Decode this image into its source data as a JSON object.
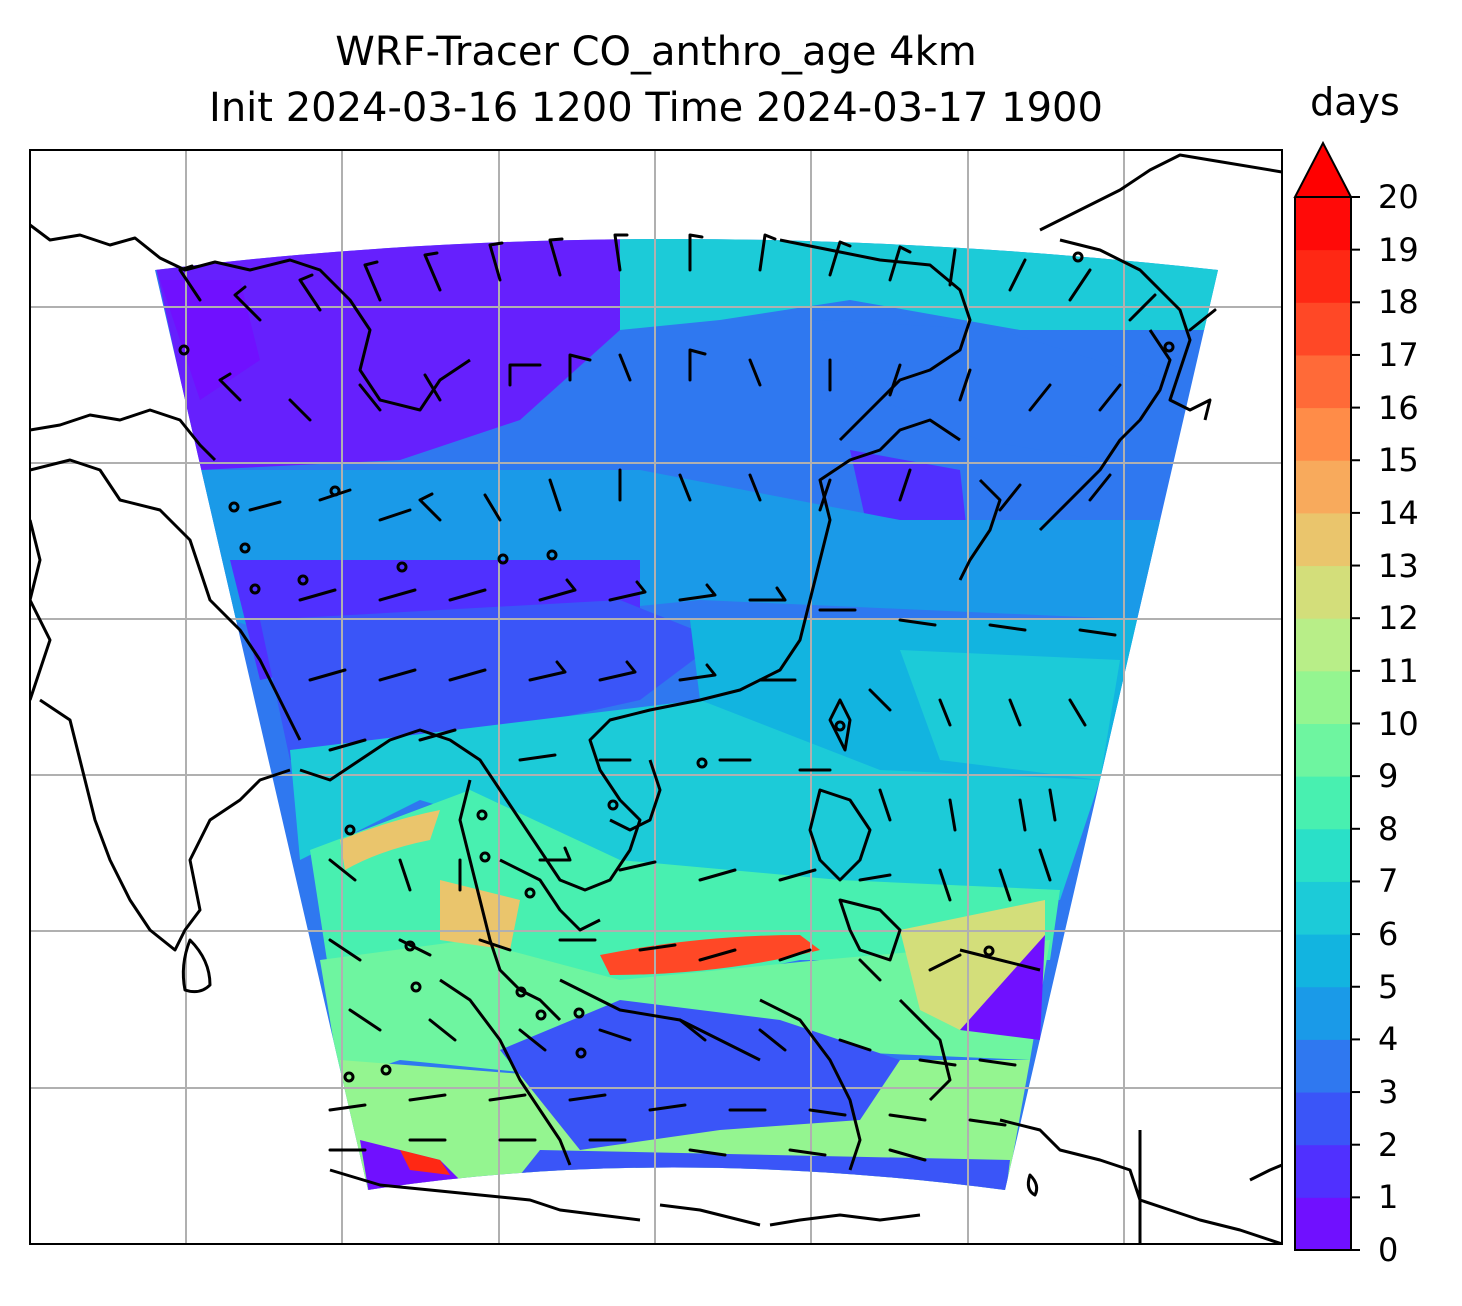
{
  "title": {
    "line1": "WRF-Tracer CO_anthro_age 4km",
    "line2": "Init 2024-03-16 1200 Time 2024-03-17 1900"
  },
  "colorbar": {
    "unit": "days",
    "min": 0,
    "max": 20,
    "extend": "max",
    "extend_color": "#ff0000",
    "tick_labels": [
      "0",
      "1",
      "2",
      "3",
      "4",
      "5",
      "6",
      "7",
      "8",
      "9",
      "10",
      "11",
      "12",
      "13",
      "14",
      "15",
      "16",
      "17",
      "18",
      "19",
      "20"
    ],
    "level_colors": [
      "#7010ff",
      "#5030ff",
      "#3a55f8",
      "#2f78f0",
      "#1a9ae8",
      "#12b4e0",
      "#1ccbd8",
      "#2ae0c8",
      "#48f0b0",
      "#6ef5a0",
      "#94f590",
      "#b8ee88",
      "#d3de7a",
      "#eac56c",
      "#f8aa5c",
      "#ff8c48",
      "#ff6a38",
      "#ff4826",
      "#ff2814",
      "#ff0a08"
    ]
  },
  "map": {
    "gridlines": true,
    "coastlines": true,
    "field_variable": "CO_anthro_age",
    "wind_barbs": true
  }
}
